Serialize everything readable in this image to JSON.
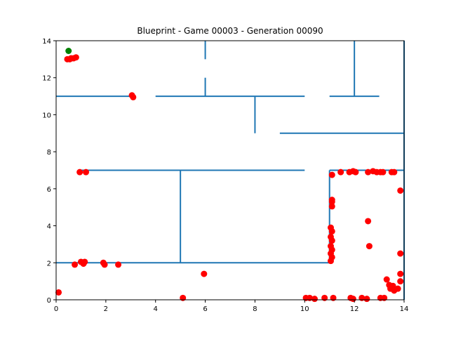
{
  "chart_data": {
    "type": "scatter",
    "title": "Blueprint - Game 00003 - Generation 00090",
    "xlabel": "",
    "ylabel": "",
    "xlim": [
      0,
      14
    ],
    "ylim": [
      0,
      14
    ],
    "x_ticks": [
      0,
      2,
      4,
      6,
      8,
      10,
      12,
      14
    ],
    "y_ticks": [
      0,
      2,
      4,
      6,
      8,
      10,
      12,
      14
    ],
    "grid": false,
    "wall_color": "#1f77b4",
    "walls": [
      {
        "x": [
          0,
          3
        ],
        "y": [
          11,
          11
        ]
      },
      {
        "x": [
          4,
          10
        ],
        "y": [
          11,
          11
        ]
      },
      {
        "x": [
          11,
          13
        ],
        "y": [
          11,
          11
        ]
      },
      {
        "x": [
          6,
          6
        ],
        "y": [
          13,
          14
        ]
      },
      {
        "x": [
          6,
          6
        ],
        "y": [
          11,
          12
        ]
      },
      {
        "x": [
          12,
          12
        ],
        "y": [
          11,
          14
        ]
      },
      {
        "x": [
          8,
          8
        ],
        "y": [
          9,
          11
        ]
      },
      {
        "x": [
          9,
          14
        ],
        "y": [
          9,
          9
        ]
      },
      {
        "x": [
          1,
          10
        ],
        "y": [
          7,
          7
        ]
      },
      {
        "x": [
          5,
          5
        ],
        "y": [
          2,
          7
        ]
      },
      {
        "x": [
          0,
          11
        ],
        "y": [
          2,
          2
        ]
      },
      {
        "x": [
          11,
          11
        ],
        "y": [
          2,
          7
        ]
      },
      {
        "x": [
          11,
          14
        ],
        "y": [
          7,
          7
        ]
      },
      {
        "x": [
          14,
          14
        ],
        "y": [
          0,
          14
        ]
      }
    ],
    "series": [
      {
        "color": "#ff0000",
        "points": [
          [
            0.45,
            13.0
          ],
          [
            0.55,
            13.0
          ],
          [
            0.6,
            13.05
          ],
          [
            0.7,
            13.05
          ],
          [
            0.8,
            13.1
          ],
          [
            3.05,
            11.05
          ],
          [
            3.1,
            10.95
          ],
          [
            0.95,
            6.9
          ],
          [
            1.2,
            6.9
          ],
          [
            0.75,
            1.9
          ],
          [
            1.0,
            2.05
          ],
          [
            1.1,
            1.95
          ],
          [
            1.15,
            2.05
          ],
          [
            1.9,
            2.0
          ],
          [
            1.95,
            1.9
          ],
          [
            2.5,
            1.9
          ],
          [
            0.1,
            0.4
          ],
          [
            5.1,
            0.1
          ],
          [
            5.95,
            1.4
          ],
          [
            10.05,
            0.1
          ],
          [
            10.2,
            0.1
          ],
          [
            10.4,
            0.05
          ],
          [
            10.8,
            0.1
          ],
          [
            11.15,
            0.1
          ],
          [
            11.85,
            0.1
          ],
          [
            11.95,
            0.05
          ],
          [
            12.3,
            0.1
          ],
          [
            12.5,
            0.05
          ],
          [
            13.05,
            0.1
          ],
          [
            13.2,
            0.1
          ],
          [
            13.3,
            1.1
          ],
          [
            13.4,
            0.8
          ],
          [
            13.45,
            0.6
          ],
          [
            13.55,
            0.75
          ],
          [
            13.6,
            0.5
          ],
          [
            13.75,
            0.6
          ],
          [
            13.85,
            1.0
          ],
          [
            13.85,
            1.4
          ],
          [
            13.85,
            2.5
          ],
          [
            13.85,
            5.9
          ],
          [
            12.55,
            4.25
          ],
          [
            12.6,
            2.9
          ],
          [
            11.1,
            6.75
          ],
          [
            11.45,
            6.9
          ],
          [
            11.8,
            6.9
          ],
          [
            11.95,
            6.95
          ],
          [
            12.05,
            6.9
          ],
          [
            12.55,
            6.9
          ],
          [
            12.75,
            6.95
          ],
          [
            12.9,
            6.9
          ],
          [
            13.05,
            6.9
          ],
          [
            13.15,
            6.9
          ],
          [
            13.5,
            6.9
          ],
          [
            13.6,
            6.9
          ],
          [
            11.1,
            5.3
          ],
          [
            11.1,
            5.05
          ],
          [
            11.1,
            5.4
          ],
          [
            11.05,
            3.9
          ],
          [
            11.1,
            3.7
          ],
          [
            11.05,
            3.4
          ],
          [
            11.1,
            3.2
          ],
          [
            11.05,
            2.9
          ],
          [
            11.1,
            2.7
          ],
          [
            11.05,
            2.5
          ],
          [
            11.1,
            2.3
          ],
          [
            11.05,
            2.1
          ]
        ]
      },
      {
        "color": "#008000",
        "points": [
          [
            0.5,
            13.45
          ]
        ]
      }
    ]
  }
}
